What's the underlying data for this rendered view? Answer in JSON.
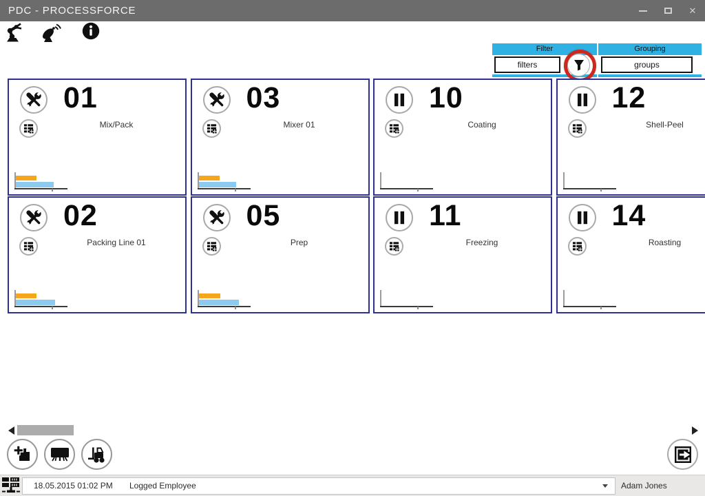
{
  "window": {
    "title": "PDC - PROCESSFORCE",
    "controls": {
      "minimize": "minimize",
      "maximize": "maximize",
      "close": "✕"
    }
  },
  "toolbar": {
    "icons": [
      "robot-arm",
      "satellite-dish",
      "info"
    ]
  },
  "filter_grouping": {
    "filter": {
      "header": "Filter",
      "button_label": "filters",
      "icon": "funnel"
    },
    "grouping": {
      "header": "Grouping",
      "button_label": "groups"
    }
  },
  "cards": [
    {
      "number": "01",
      "label": "Mix/Pack",
      "status_icon": "tools",
      "bars": {
        "orange": 30,
        "blue": 55
      }
    },
    {
      "number": "03",
      "label": "Mixer 01",
      "status_icon": "tools",
      "bars": {
        "orange": 30,
        "blue": 54
      }
    },
    {
      "number": "10",
      "label": "Coating",
      "status_icon": "pause",
      "bars": null
    },
    {
      "number": "12",
      "label": "Shell-Peel",
      "status_icon": "pause",
      "bars": null
    },
    {
      "number": "02",
      "label": "Packing Line 01",
      "status_icon": "tools",
      "bars": {
        "orange": 30,
        "blue": 57
      }
    },
    {
      "number": "05",
      "label": "Prep",
      "status_icon": "tools",
      "bars": {
        "orange": 31,
        "blue": 58
      }
    },
    {
      "number": "11",
      "label": "Freezing",
      "status_icon": "pause",
      "bars": null
    },
    {
      "number": "14",
      "label": "Roasting",
      "status_icon": "pause",
      "bars": null
    }
  ],
  "chart": {
    "colors": {
      "orange": "#F5A61D",
      "blue": "#8DCAF0"
    }
  },
  "bottom_toolbar": {
    "icons": [
      "new-document",
      "display-board",
      "forklift"
    ],
    "exit_icon": "exit-door"
  },
  "scrollbar": {
    "left_icon": "left-arrow",
    "right_icon": "right-arrow"
  },
  "status_bar": {
    "datetime": "18.05.2015 01:02 PM",
    "session_label": "Logged Employee",
    "user_name": "Adam Jones",
    "left_icon": "plc-network"
  },
  "colors": {
    "accent_cyan": "#2FB1E3",
    "card_border": "#2D3092",
    "bar_orange": "#F5A61D",
    "bar_blue": "#8DCAF0",
    "indicator_red": "#CE271C",
    "titlebar_gray": "#6C6C6C"
  }
}
